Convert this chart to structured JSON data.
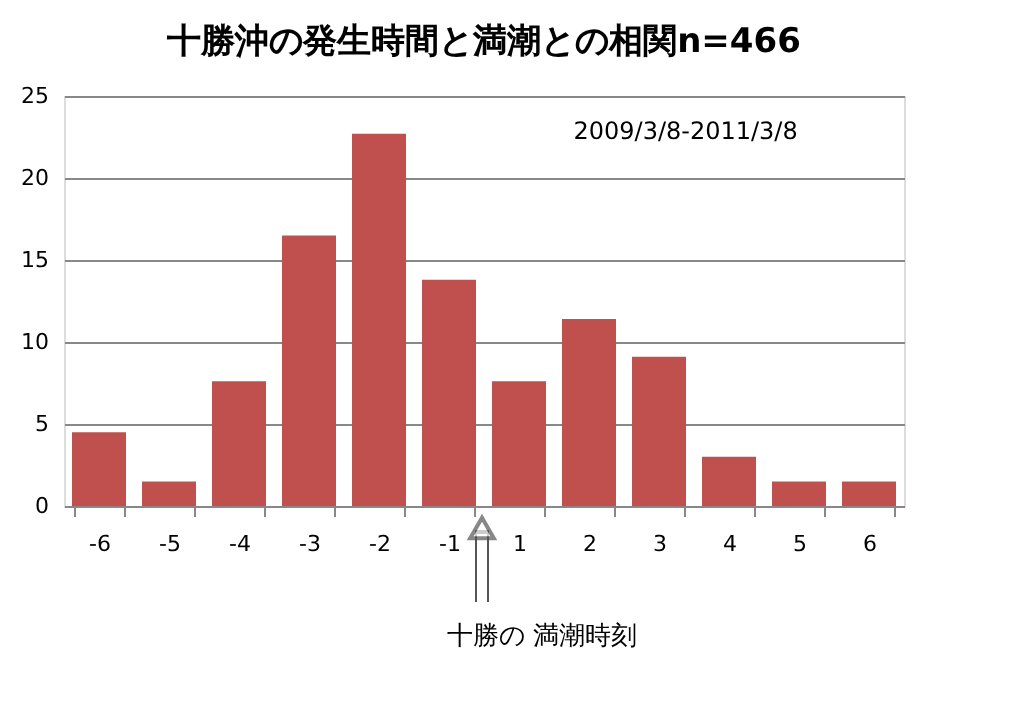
{
  "chart_data": {
    "type": "bar",
    "title": "十勝沖の発生時間と満潮との相関n=466",
    "categories": [
      "-6",
      "-5",
      "-4",
      "-3",
      "-2",
      "-1",
      "1",
      "2",
      "3",
      "4",
      "5",
      "6"
    ],
    "values": [
      4.5,
      1.5,
      7.6,
      16.5,
      22.7,
      13.8,
      7.6,
      11.4,
      9.1,
      3.0,
      1.5,
      1.5
    ],
    "color": "#c0504d",
    "ylim": [
      0,
      25
    ],
    "yticks": [
      0,
      5,
      10,
      15,
      20,
      25
    ],
    "grid": "y",
    "annotations": [
      "2009/3/8-2011/3/8",
      "十勝の 満潮時刻"
    ]
  }
}
